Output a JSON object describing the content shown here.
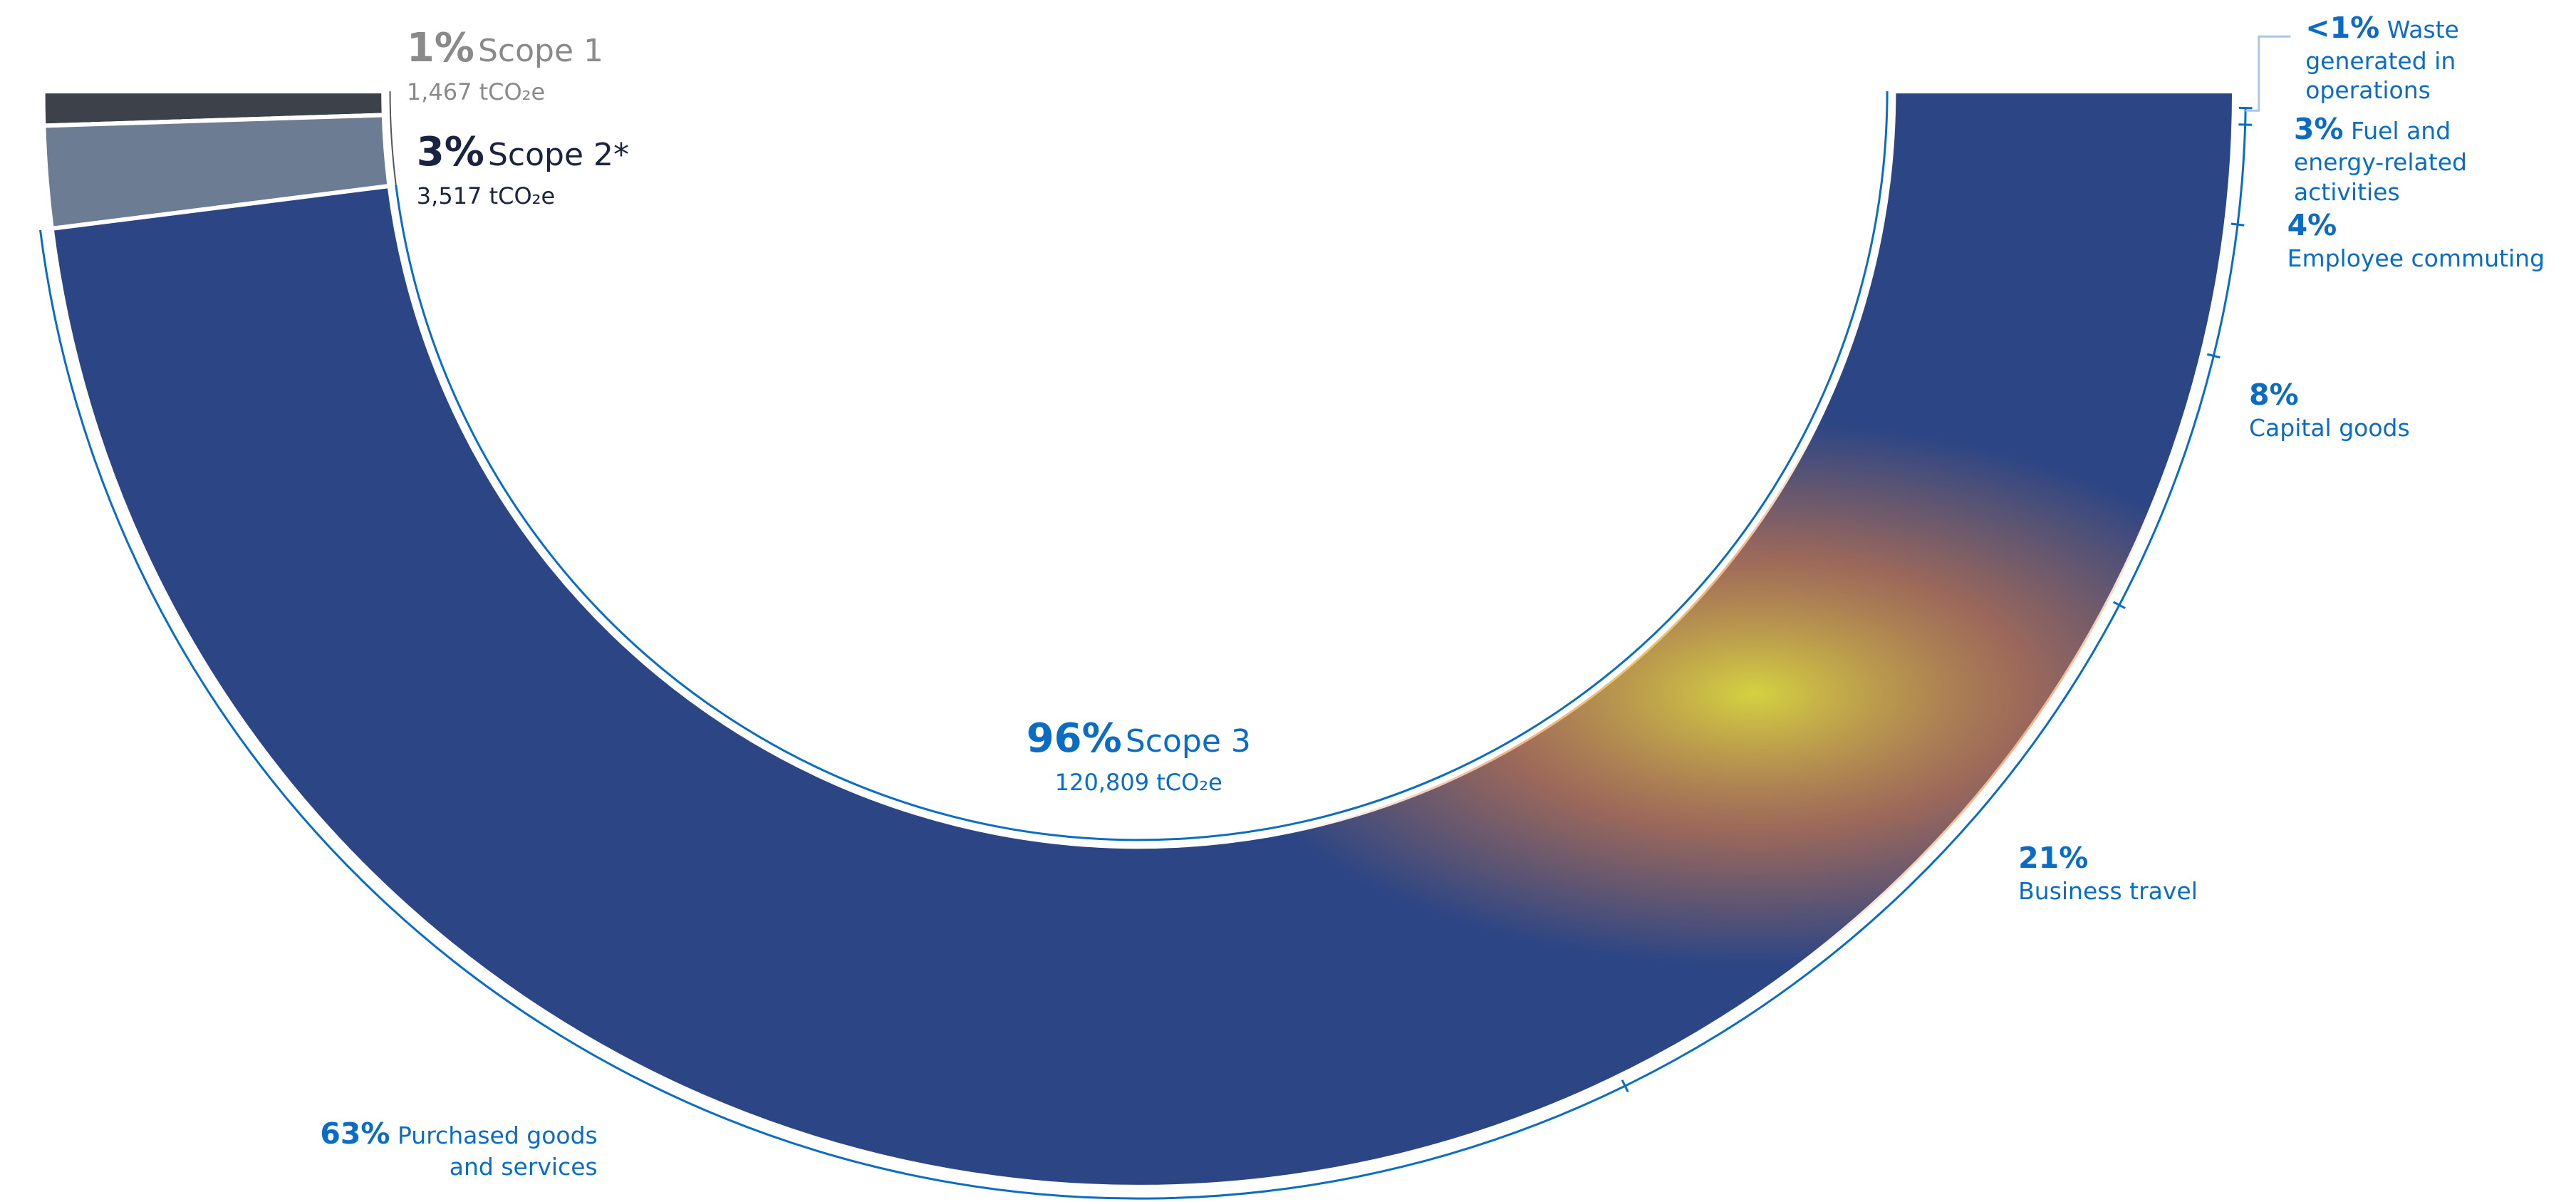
{
  "chart_data": {
    "type": "semi-donut",
    "unit": "tCO₂e",
    "scopes": [
      {
        "name": "Scope 1",
        "share": 1,
        "share_label": "1%",
        "emissions": {
          "value": 1467,
          "label": "1,467"
        },
        "color": "#3d424a"
      },
      {
        "name": "Scope 2*",
        "share": 3,
        "share_label": "3%",
        "emissions": {
          "value": 3517,
          "label": "3,517"
        },
        "color": "#6b7c93"
      },
      {
        "name": "Scope 3",
        "share": 96,
        "share_label": "96%",
        "emissions": {
          "value": 120809,
          "label": "120,809"
        },
        "color": "#2b4585"
      }
    ],
    "scope3_categories": [
      {
        "name": "Purchased goods and services",
        "share": 63,
        "share_label": "63%"
      },
      {
        "name": "Business travel",
        "share": 21,
        "share_label": "21%"
      },
      {
        "name": "Capital goods",
        "share": 8,
        "share_label": "8%"
      },
      {
        "name": "Employee commuting",
        "share": 4,
        "share_label": "4%"
      },
      {
        "name": "Fuel and energy-related activities",
        "share": 3,
        "share_label": "3%"
      },
      {
        "name": "Waste generated in operations",
        "share": 0.5,
        "share_label": "<1%"
      }
    ],
    "category_color": "#0b6cc4"
  }
}
